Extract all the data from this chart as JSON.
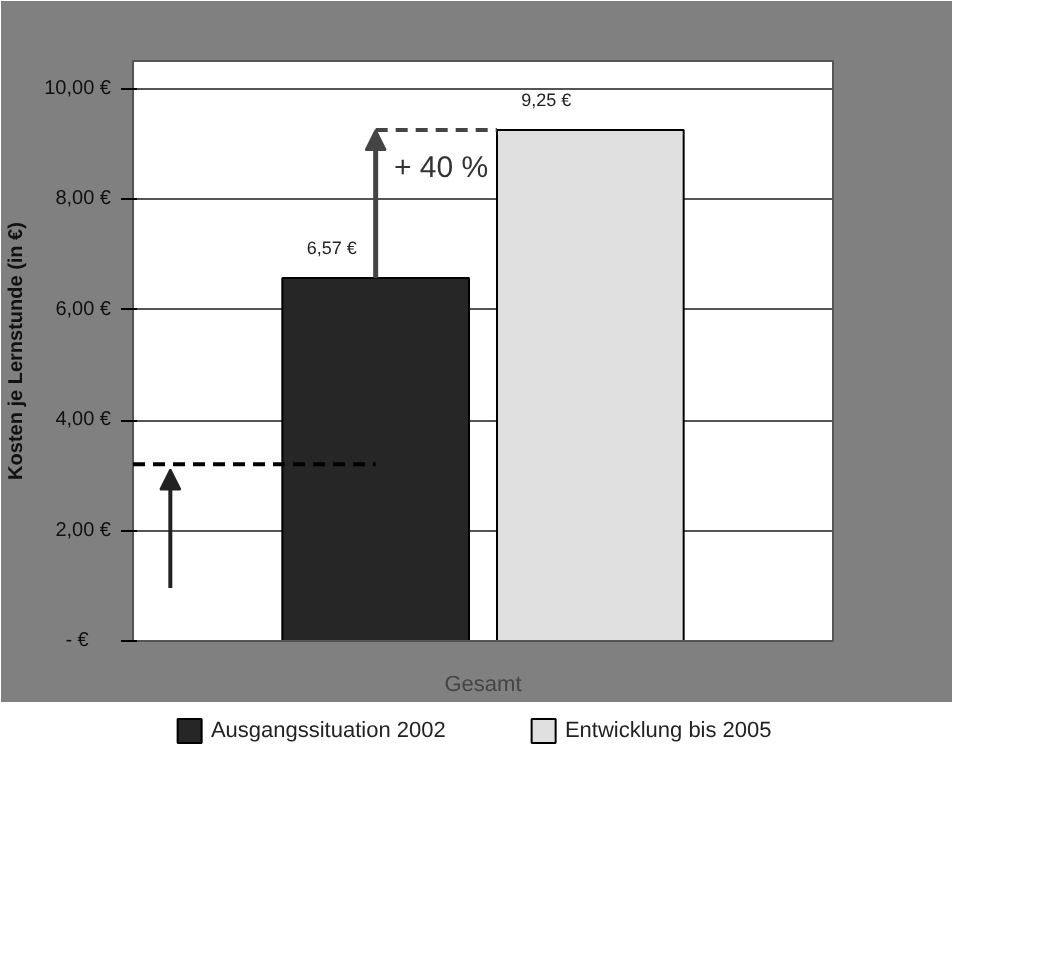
{
  "chart_data": {
    "type": "bar",
    "ylabel": "Kosten je Lernstunde (in €)",
    "categories": [
      "Gesamt"
    ],
    "series": [
      {
        "name": "Ausgangssituation 2002",
        "color": "#262626",
        "values": [
          6.57
        ],
        "value_labels": [
          "6,57 €"
        ]
      },
      {
        "name": "Entwicklung bis 2005",
        "color": "#e0e0e0",
        "values": [
          9.25
        ],
        "value_labels": [
          "9,25 €"
        ]
      }
    ],
    "ylim": [
      0,
      10.5
    ],
    "yticks": [
      {
        "value": 0,
        "label": "-     €"
      },
      {
        "value": 2,
        "label": "2,00 €"
      },
      {
        "value": 4,
        "label": "4,00 €"
      },
      {
        "value": 6,
        "label": "6,00 €"
      },
      {
        "value": 8,
        "label": "8,00 €"
      },
      {
        "value": 10,
        "label": "10,00 €"
      }
    ],
    "grid": "y",
    "legend": "bottom",
    "annotations": [
      "+ 40 %"
    ],
    "ref_lines": [
      {
        "axis": "y",
        "value": 3.2,
        "color": "#000000",
        "line_style": "dashed"
      }
    ]
  }
}
